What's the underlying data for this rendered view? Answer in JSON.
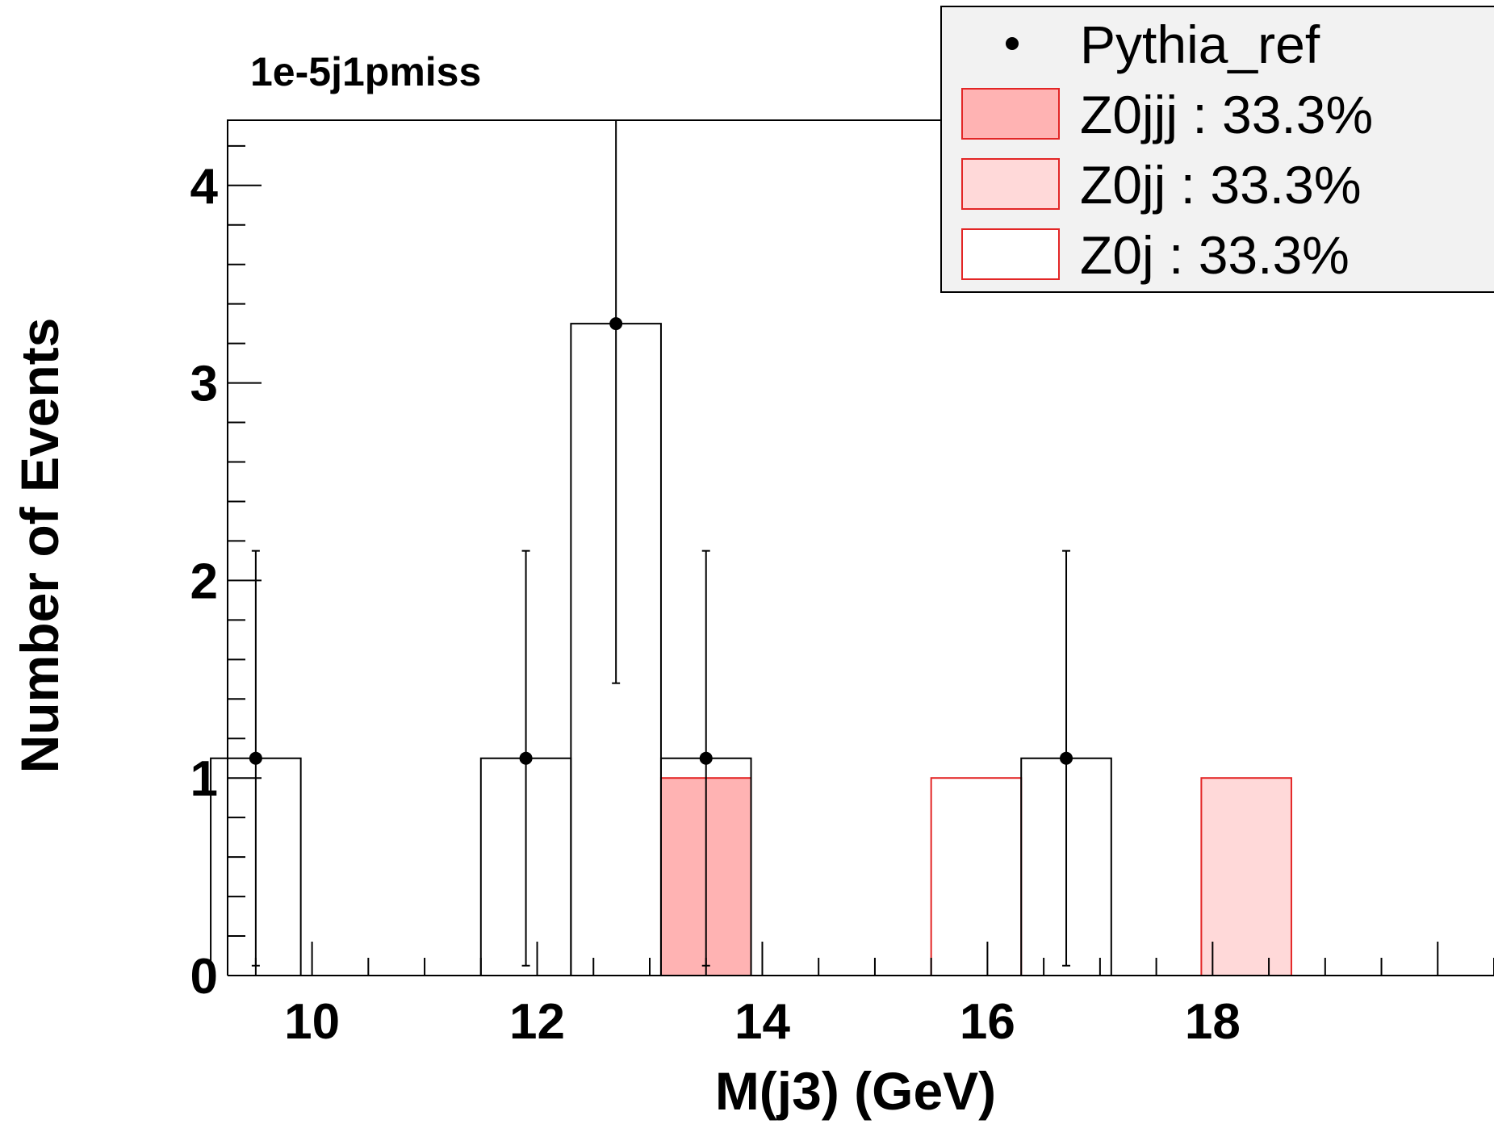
{
  "chart_data": {
    "type": "bar",
    "title": "1e-5j1pmiss",
    "xlabel": "M(j3) (GeV)",
    "ylabel": "Number of Events",
    "xlim": [
      9.25,
      20.5
    ],
    "ylim": [
      0,
      4.33
    ],
    "xticks": [
      10,
      12,
      14,
      16,
      18
    ],
    "yticks": [
      0,
      1,
      2,
      3,
      4
    ],
    "bin_width": 0.8,
    "legend_position": "top-right",
    "series": [
      {
        "name": "Pythia_ref",
        "kind": "points-with-errors",
        "color": "#000000",
        "points": [
          {
            "x": 9.5,
            "y": 1.1,
            "ylow": 0.05,
            "yhigh": 2.15,
            "bin": [
              9.1,
              9.9
            ]
          },
          {
            "x": 11.9,
            "y": 1.1,
            "ylow": 0.05,
            "yhigh": 2.15,
            "bin": [
              11.5,
              12.3
            ]
          },
          {
            "x": 12.7,
            "y": 3.3,
            "ylow": 1.48,
            "yhigh": 4.33,
            "bin": [
              12.3,
              13.1
            ]
          },
          {
            "x": 13.5,
            "y": 1.1,
            "ylow": 0.05,
            "yhigh": 2.15,
            "bin": [
              13.1,
              13.9
            ]
          },
          {
            "x": 16.7,
            "y": 1.1,
            "ylow": 0.05,
            "yhigh": 2.15,
            "bin": [
              16.3,
              17.1
            ]
          }
        ]
      },
      {
        "name": "Z0jjj : 33.3%",
        "kind": "histogram",
        "fill": "#ffb3b3",
        "stroke": "#e32626",
        "bins": [
          {
            "x0": 13.1,
            "x1": 13.9,
            "y": 1.0
          }
        ]
      },
      {
        "name": "Z0jj : 33.3%",
        "kind": "histogram",
        "fill": "#ffd9d9",
        "stroke": "#e32626",
        "bins": [
          {
            "x0": 17.9,
            "x1": 18.7,
            "y": 1.0
          }
        ]
      },
      {
        "name": "Z0j : 33.3%",
        "kind": "histogram",
        "fill": "#ffffff",
        "stroke": "#e32626",
        "bins": [
          {
            "x0": 15.5,
            "x1": 16.3,
            "y": 1.0
          }
        ]
      }
    ]
  },
  "legend": {
    "background": "#f2f2f2",
    "entries": [
      {
        "label": "Pythia_ref",
        "marker": "dot"
      },
      {
        "label": "Z0jjj : 33.3%",
        "marker": "box",
        "fill": "#ffb3b3"
      },
      {
        "label": "Z0jj : 33.3%",
        "marker": "box",
        "fill": "#ffd9d9"
      },
      {
        "label": "Z0j : 33.3%",
        "marker": "box",
        "fill": "#ffffff"
      }
    ]
  }
}
